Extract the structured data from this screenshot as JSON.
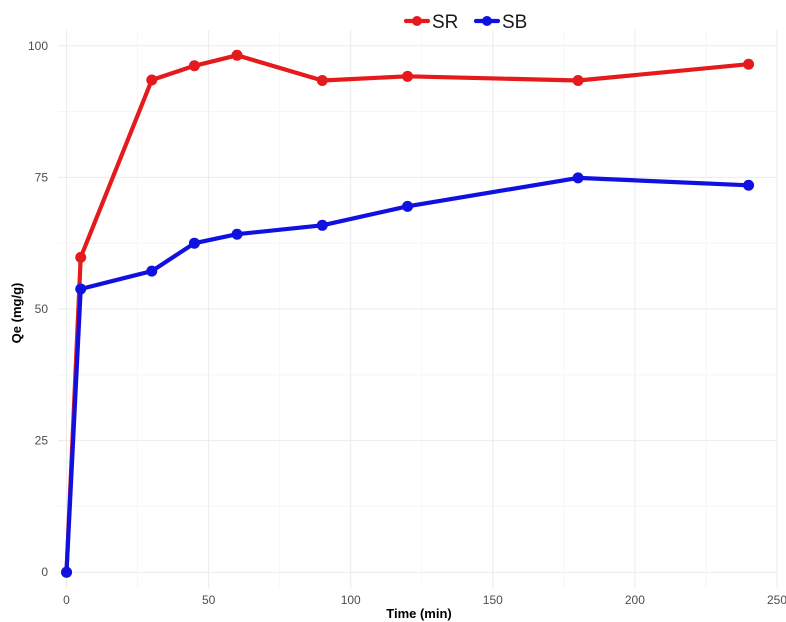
{
  "chart_data": {
    "type": "line",
    "title": "",
    "xlabel": "Time (min)",
    "ylabel": "Qe (mg/g)",
    "xlim": [
      -3,
      250
    ],
    "ylim": [
      -3,
      103
    ],
    "x_ticks": [
      0,
      50,
      100,
      150,
      200,
      250
    ],
    "y_ticks": [
      0,
      25,
      50,
      75,
      100
    ],
    "grid": true,
    "legend_position": "top",
    "series": [
      {
        "name": "SR",
        "color": "#e41a1c",
        "x": [
          0,
          5,
          30,
          45,
          60,
          90,
          120,
          180,
          240
        ],
        "y": [
          0,
          59.8,
          93.5,
          96.2,
          98.2,
          93.4,
          94.2,
          93.4,
          96.5
        ]
      },
      {
        "name": "SB",
        "color": "#1010e0",
        "x": [
          0,
          5,
          30,
          45,
          60,
          90,
          120,
          180,
          240
        ],
        "y": [
          0,
          53.8,
          57.2,
          62.5,
          64.2,
          65.9,
          69.5,
          74.9,
          73.5
        ]
      }
    ]
  }
}
